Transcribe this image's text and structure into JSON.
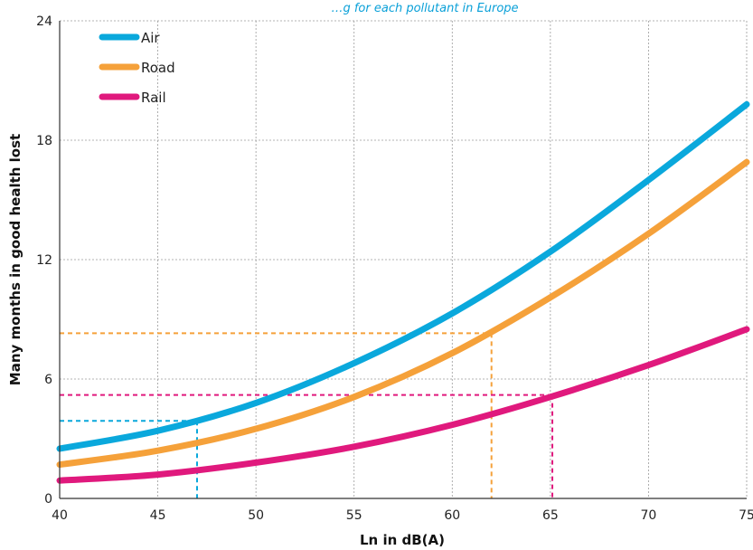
{
  "chart_data": {
    "type": "line",
    "title": "…g for each pollutant in Europe",
    "title_color": "#0aa0d8",
    "xlabel": "Ln in dB(A)",
    "ylabel": "Many months in good health lost",
    "xlim": [
      40,
      75
    ],
    "ylim": [
      0,
      24
    ],
    "x_ticks": [
      "40",
      "45",
      "50",
      "55",
      "60",
      "65",
      "70",
      "75"
    ],
    "y_ticks": [
      "0",
      "6",
      "12",
      "18",
      "24"
    ],
    "grid": true,
    "legend_position": "top-left",
    "series": [
      {
        "name": "Air",
        "color": "#0aa8dc",
        "x": [
          40,
          45,
          50,
          55,
          60,
          65,
          70,
          75
        ],
        "y": [
          2.5,
          3.4,
          4.8,
          6.8,
          9.3,
          12.4,
          16.0,
          19.8
        ]
      },
      {
        "name": "Road",
        "color": "#f5a13a",
        "x": [
          40,
          45,
          50,
          55,
          60,
          65,
          70,
          75
        ],
        "y": [
          1.7,
          2.4,
          3.5,
          5.1,
          7.3,
          10.1,
          13.3,
          16.9
        ]
      },
      {
        "name": "Rail",
        "color": "#e0197d",
        "x": [
          40,
          45,
          50,
          55,
          60,
          65,
          70,
          75
        ],
        "y": [
          0.9,
          1.2,
          1.8,
          2.6,
          3.7,
          5.1,
          6.7,
          8.5
        ]
      }
    ],
    "reference_lines": [
      {
        "series": "Air",
        "x": 47,
        "y": 3.9,
        "color": "#0aa8dc"
      },
      {
        "series": "Road",
        "x": 62,
        "y": 8.3,
        "color": "#f5a13a"
      },
      {
        "series": "Rail",
        "x": 65.1,
        "y": 5.2,
        "color": "#e0197d"
      }
    ]
  }
}
